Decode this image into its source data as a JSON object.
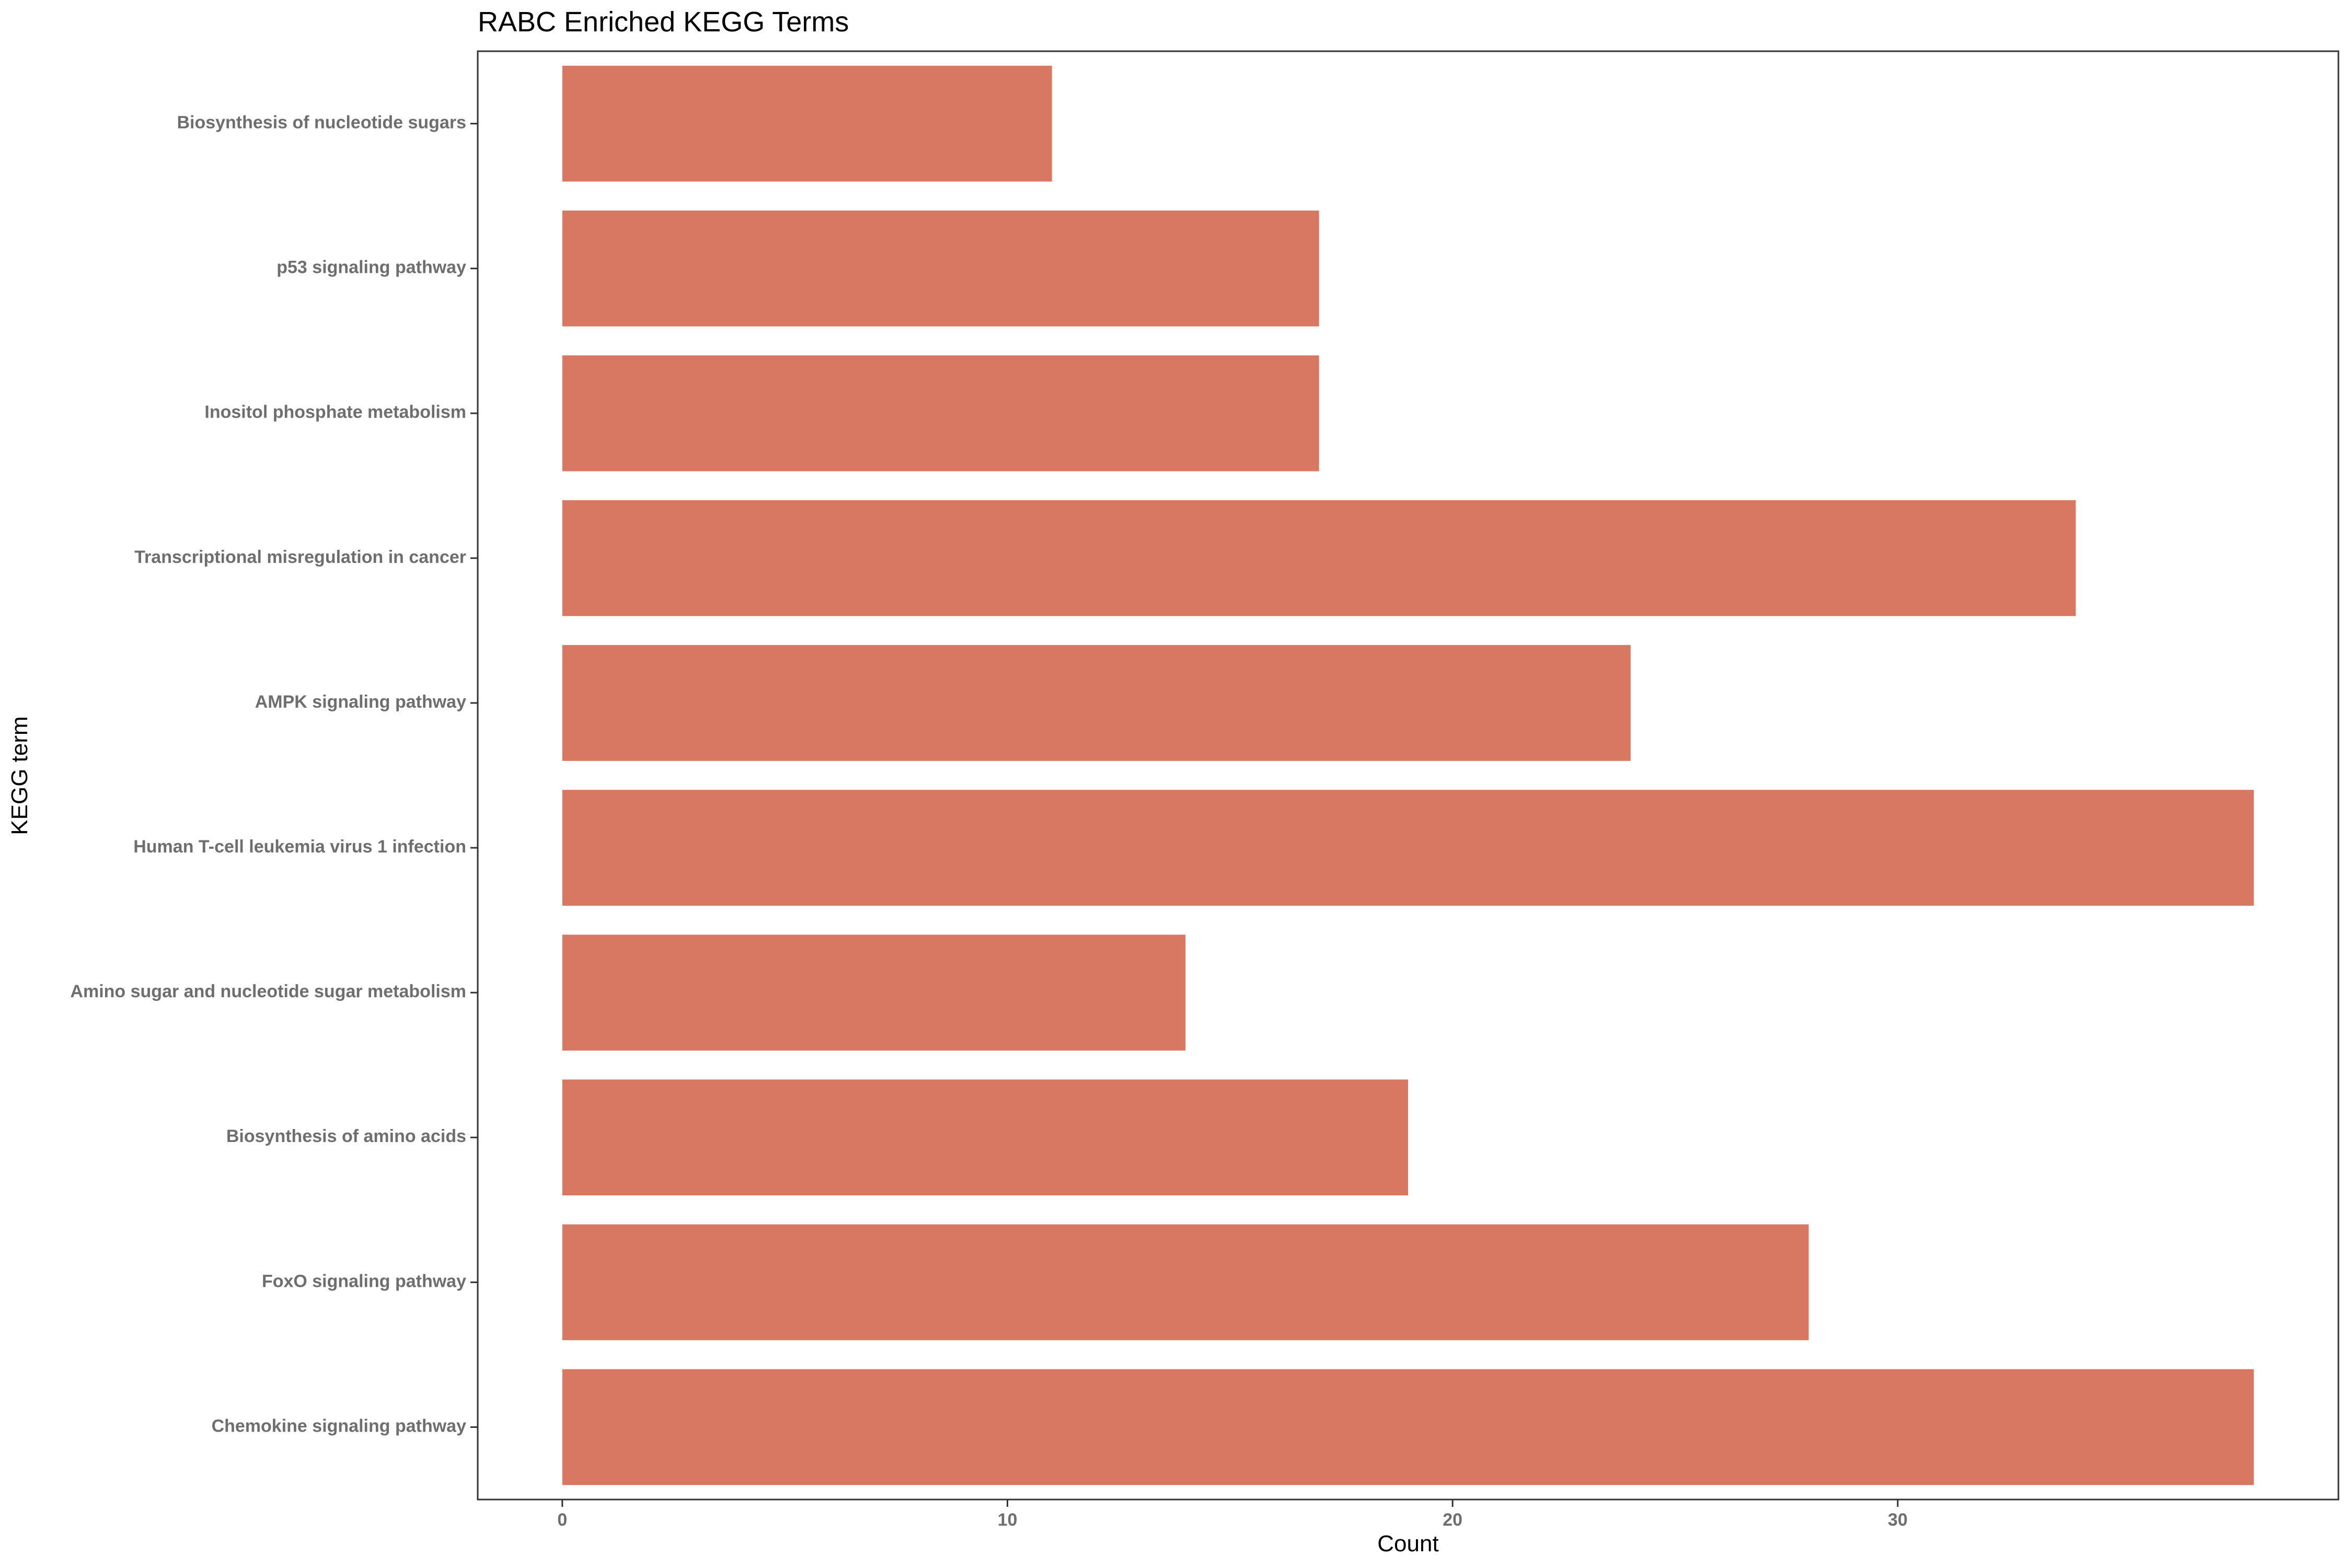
{
  "chart_data": {
    "type": "bar",
    "orientation": "horizontal",
    "title": "RABC Enriched KEGG Terms",
    "xlabel": "Count",
    "ylabel": "KEGG term",
    "categories": [
      "Biosynthesis of nucleotide sugars",
      "p53 signaling pathway",
      "Inositol phosphate metabolism",
      "Transcriptional misregulation in cancer",
      "AMPK signaling pathway",
      "Human T-cell leukemia virus 1 infection",
      "Amino sugar and nucleotide sugar metabolism",
      "Biosynthesis of amino acids",
      "FoxO signaling pathway",
      "Chemokine signaling pathway"
    ],
    "values": [
      11,
      17,
      17,
      34,
      24,
      38,
      14,
      19,
      28,
      38
    ],
    "xlim": [
      -1.9,
      39.9
    ],
    "xticks": [
      0,
      10,
      20,
      30
    ],
    "grid": false,
    "color": "#D97862"
  }
}
